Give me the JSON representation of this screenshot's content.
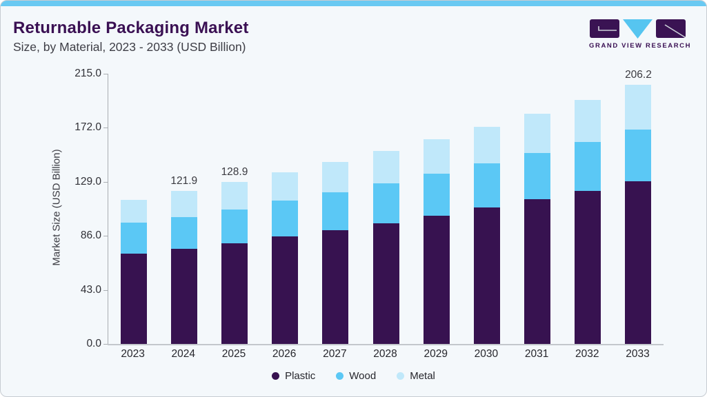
{
  "header": {
    "title": "Returnable Packaging Market",
    "subtitle": "Size, by Material, 2023 - 2033 (USD Billion)",
    "logo_text": "GRAND VIEW RESEARCH"
  },
  "colors": {
    "plastic": "#371250",
    "wood": "#5bc8f5",
    "metal": "#c0e8fa",
    "accent_bar": "#69c9f2",
    "title_text": "#3a1053",
    "card_background": "#f4f8fb",
    "axis_line": "#a9adb2"
  },
  "chart_data": {
    "type": "bar",
    "stacked": true,
    "title": "Returnable Packaging Market Size, by Material, 2023 - 2033 (USD Billion)",
    "categories": [
      "2023",
      "2024",
      "2025",
      "2026",
      "2027",
      "2028",
      "2029",
      "2030",
      "2031",
      "2032",
      "2033"
    ],
    "series": [
      {
        "name": "Plastic",
        "color": "#371250",
        "values": [
          72.0,
          75.7,
          80.0,
          85.3,
          90.6,
          96.0,
          102.0,
          108.5,
          115.2,
          121.9,
          129.5
        ]
      },
      {
        "name": "Wood",
        "color": "#5bc8f5",
        "values": [
          24.3,
          25.4,
          27.0,
          28.6,
          30.2,
          31.9,
          33.6,
          35.0,
          36.9,
          38.9,
          41.0
        ]
      },
      {
        "name": "Metal",
        "color": "#c0e8fa",
        "values": [
          18.2,
          20.8,
          21.9,
          22.8,
          24.1,
          25.8,
          27.4,
          29.3,
          31.2,
          33.6,
          35.7
        ]
      }
    ],
    "data_labels": {
      "2024": "121.9",
      "2025": "128.9",
      "2033": "206.2"
    },
    "ylabel": "Market Size (USD Billion)",
    "yticks": [
      "0.0",
      "43.0",
      "86.0",
      "129.0",
      "172.0",
      "215.0"
    ],
    "ylim": [
      0,
      215
    ],
    "grid": false,
    "legend_position": "bottom",
    "legend_entries": [
      "Plastic",
      "Wood",
      "Metal"
    ]
  }
}
